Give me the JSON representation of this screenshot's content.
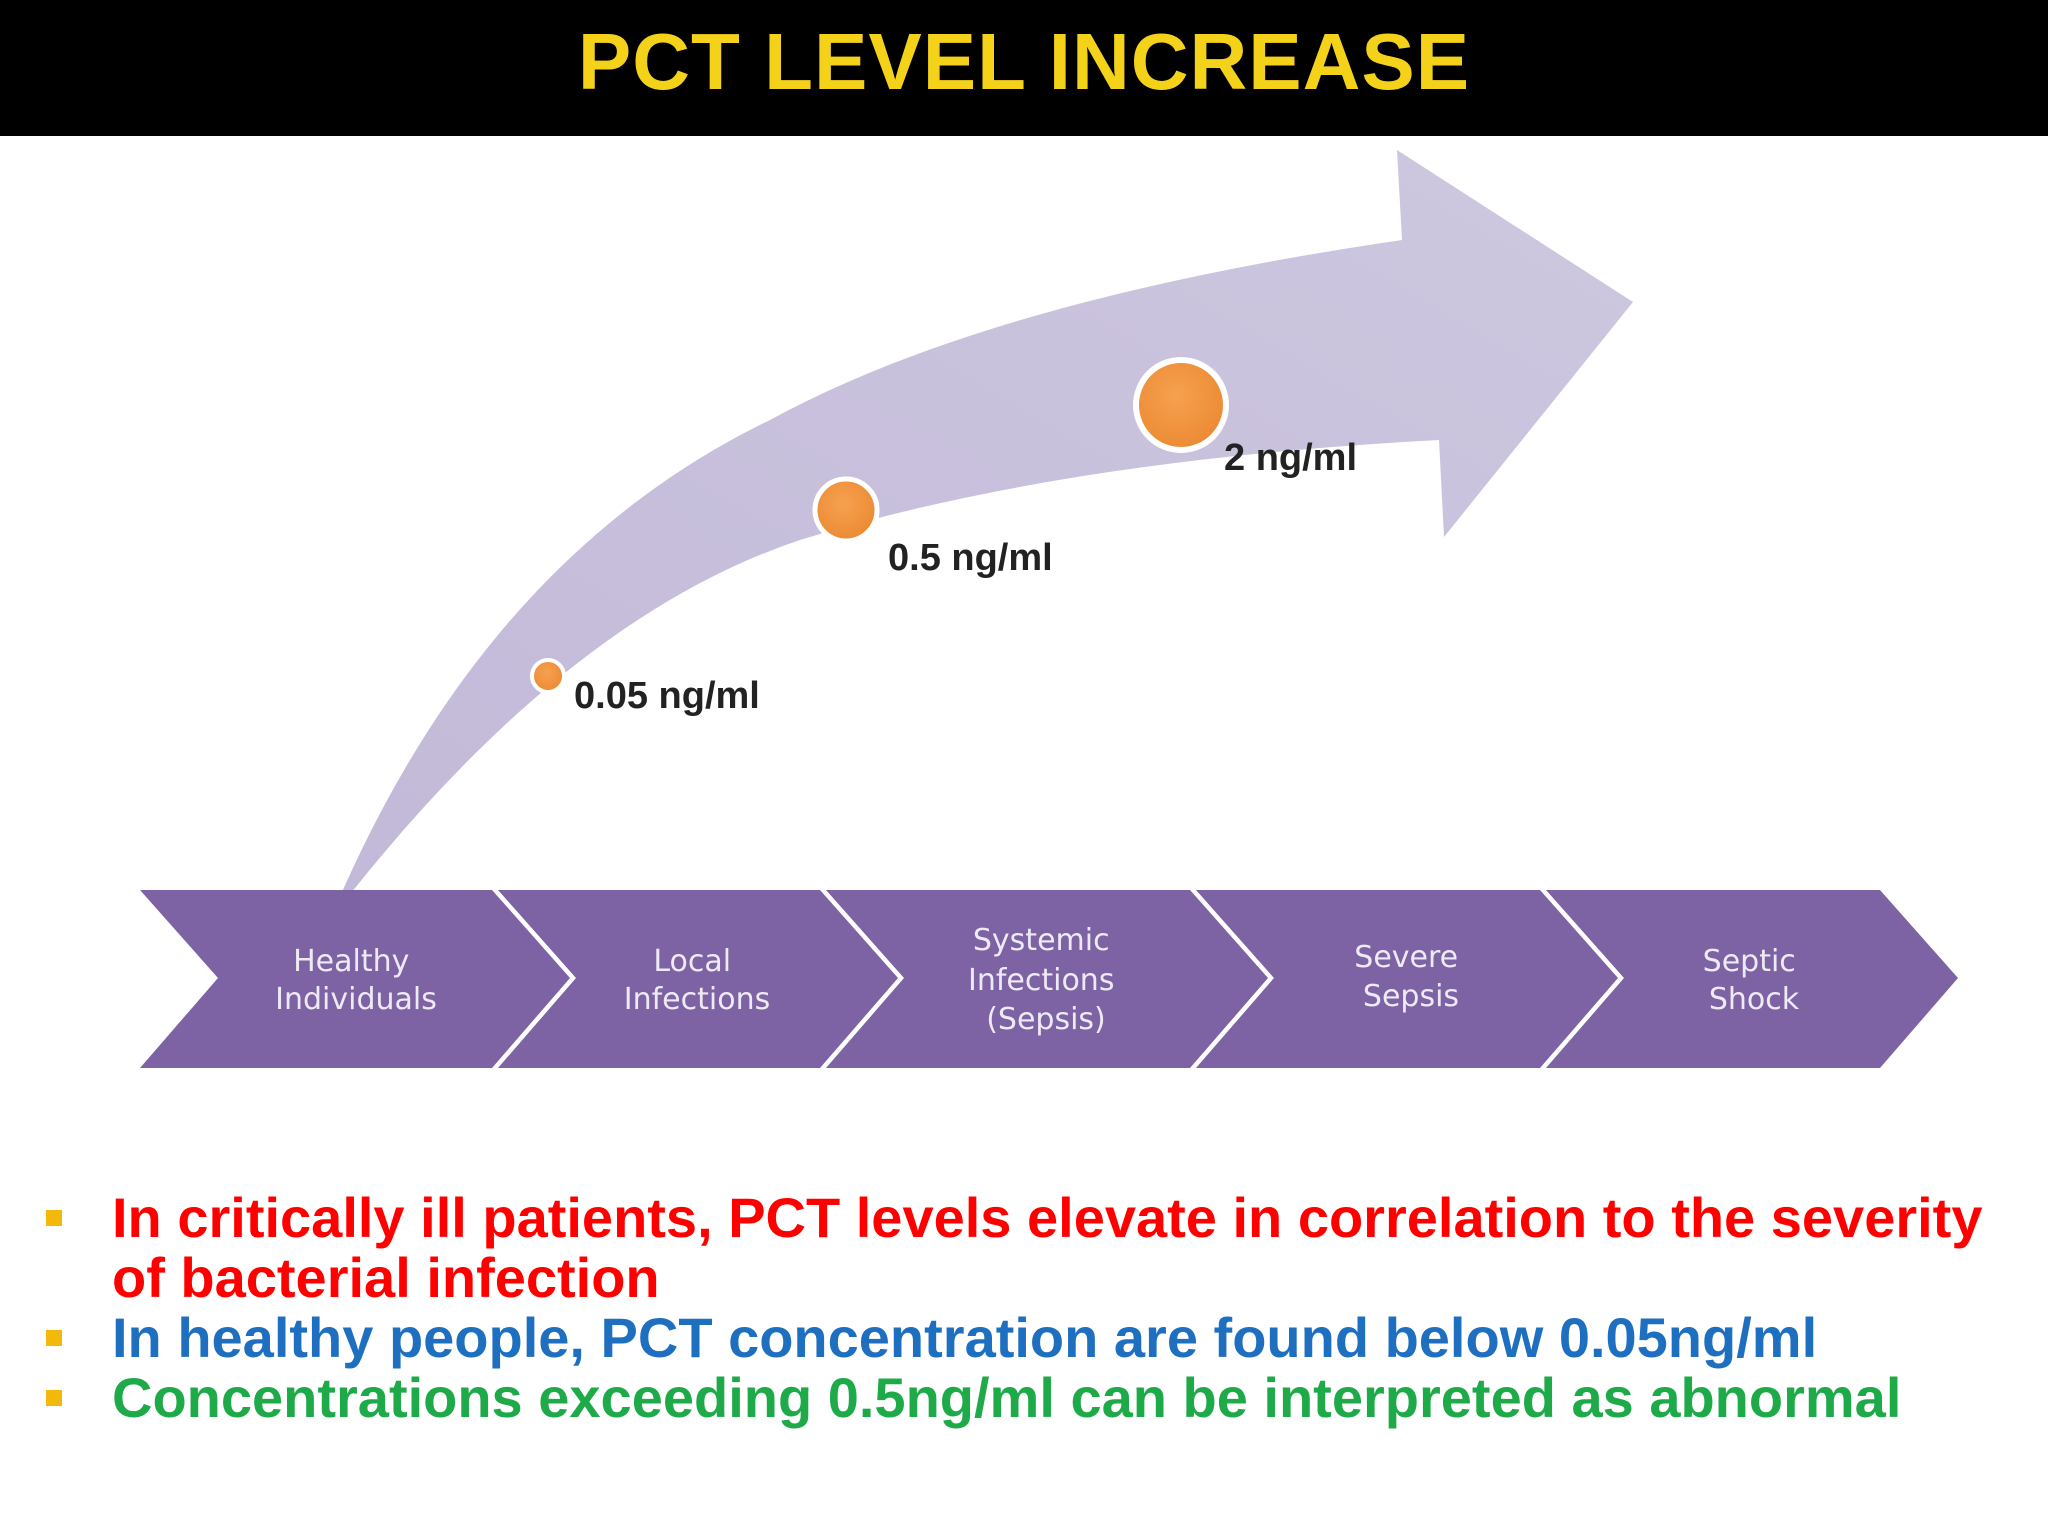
{
  "title": "PCT LEVEL INCREASE",
  "colors": {
    "title_bar": "#000000",
    "title_text": "#f5d21a",
    "curved_arrow": "#c9c2dc",
    "stage_chevron": "#7d62a4",
    "level_dot": "#f0913a",
    "bullet_marker": "#f2b90c",
    "bullet_red": "#ff0000",
    "bullet_blue": "#1f6fc0",
    "bullet_green": "#1faa4a"
  },
  "levels": [
    {
      "label": "0.05 ng/ml",
      "value": 0.05
    },
    {
      "label": "0.5 ng/ml",
      "value": 0.5
    },
    {
      "label": "2 ng/ml",
      "value": 2
    }
  ],
  "stages": [
    {
      "lines": [
        "Healthy",
        "Individuals"
      ]
    },
    {
      "lines": [
        "Local",
        "Infections"
      ]
    },
    {
      "lines": [
        "Systemic",
        "Infections",
        "(Sepsis)"
      ]
    },
    {
      "lines": [
        "Severe",
        "Sepsis"
      ]
    },
    {
      "lines": [
        "Septic",
        "Shock"
      ]
    }
  ],
  "bullets": [
    {
      "text": "In critically ill patients, PCT levels elevate in correlation to the severity of bacterial infection",
      "color": "red"
    },
    {
      "text": "In healthy people, PCT concentration are found below 0.05ng/ml",
      "color": "blue"
    },
    {
      "text": "Concentrations exceeding 0.5ng/ml can be interpreted as abnormal",
      "color": "green"
    }
  ]
}
